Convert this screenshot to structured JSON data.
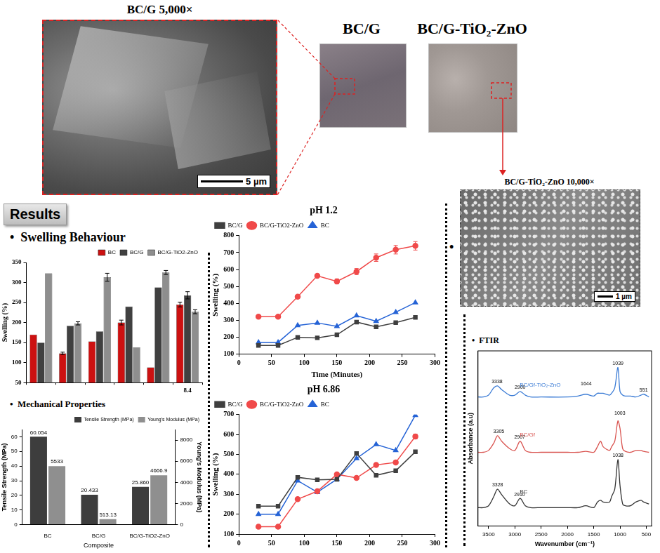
{
  "panels": {
    "sem_bcg": {
      "title": "BC/G 5,000×",
      "scale_bar": "5 µm"
    },
    "photo_bcg": {
      "title": "BC/G"
    },
    "photo_tio2": {
      "title": "BC/G-TiO₂-ZnO"
    },
    "sem_tio2": {
      "title": "BC/G-TiO₂-ZnO 10,000×",
      "scale_bar": "1 µm"
    }
  },
  "headings": {
    "results": "Results",
    "swelling": "Swelling Behaviour",
    "mechanical": "Mechanical Properties",
    "ftir": "FTIR",
    "bullet": "•"
  },
  "chart_data": [
    {
      "type": "bar",
      "categories": [
        null,
        null,
        null,
        null,
        null,
        "8.4"
      ],
      "series": [
        {
          "name": "BC",
          "color": "#cc1111",
          "values": [
            170,
            123,
            153,
            200,
            88,
            245
          ],
          "errors": [
            0,
            3,
            0,
            6,
            0,
            6
          ]
        },
        {
          "name": "BC/G",
          "color": "#404040",
          "values": [
            150,
            192,
            178,
            240,
            288,
            268
          ],
          "errors": [
            0,
            0,
            0,
            0,
            0,
            9
          ]
        },
        {
          "name": "BC/G-TiO2-ZnO",
          "color": "#8e8e8e",
          "values": [
            323,
            198,
            313,
            138,
            325,
            227
          ],
          "errors": [
            0,
            4,
            10,
            0,
            5,
            5
          ]
        }
      ],
      "ylabel": "Swelling (%)",
      "ylim": [
        50,
        350
      ],
      "yticks": [
        50,
        100,
        150,
        200,
        250,
        300,
        350
      ],
      "legend": "upper right",
      "grid": false
    },
    {
      "type": "bar",
      "categories": [
        "BC",
        "BC/G",
        "BC/G-TiO2-ZnO"
      ],
      "series": [
        {
          "name": "Tensile Strength (MPa)",
          "color": "#3d3d3d",
          "values": [
            60.054,
            20.433,
            25.86
          ],
          "value_labels": [
            "60.054",
            "20.433",
            "25.860"
          ]
        },
        {
          "name": "Young's Modulus (MPa)",
          "color": "#8f8f8f",
          "axis": "y2",
          "values": [
            5533,
            513.13,
            4666.9
          ],
          "value_labels": [
            "5533",
            "513.13",
            "4666.9"
          ]
        }
      ],
      "xlabel": "Composite",
      "ylabel": "Tensile Strength (MPa)",
      "y2label": "Young's Modulus (MPa)",
      "ylim": [
        0,
        65
      ],
      "yticks": [
        0,
        10,
        20,
        30,
        40,
        50,
        60
      ],
      "y2lim": [
        0,
        9000
      ],
      "y2ticks": [
        0,
        2000,
        4000,
        6000,
        8000
      ],
      "data_labels": true,
      "legend": "upper right",
      "grid": false
    },
    {
      "type": "line",
      "title": "pH 1.2",
      "x": [
        30,
        60,
        90,
        120,
        150,
        180,
        210,
        240,
        270
      ],
      "series": [
        {
          "name": "BC/G",
          "color": "#3f3f3f",
          "marker": "square",
          "values": [
            152,
            152,
            200,
            197,
            215,
            290,
            262,
            287,
            318
          ]
        },
        {
          "name": "BC/G-TiO2-ZnO",
          "color": "#f04a4a",
          "marker": "circle",
          "values": [
            322,
            322,
            440,
            563,
            530,
            588,
            670,
            717,
            740
          ],
          "errors": [
            0,
            0,
            0,
            10,
            15,
            18,
            22,
            25,
            25
          ]
        },
        {
          "name": "BC",
          "color": "#2563d6",
          "marker": "triangle",
          "values": [
            170,
            170,
            270,
            285,
            265,
            328,
            295,
            348,
            405
          ]
        }
      ],
      "xlabel": "Time (Minutes)",
      "ylabel": "Swelling (%)",
      "xlim": [
        0,
        300
      ],
      "xticks": [
        0,
        50,
        100,
        150,
        200,
        250,
        300
      ],
      "ylim": [
        100,
        800
      ],
      "yticks": [
        100,
        200,
        300,
        400,
        500,
        600,
        700,
        800
      ],
      "legend": "upper left",
      "grid": false
    },
    {
      "type": "line",
      "title": "pH 6.86",
      "x": [
        30,
        60,
        90,
        120,
        150,
        180,
        210,
        240,
        270
      ],
      "series": [
        {
          "name": "BC/G",
          "color": "#3f3f3f",
          "marker": "square",
          "values": [
            240,
            240,
            385,
            372,
            375,
            505,
            395,
            418,
            513
          ]
        },
        {
          "name": "BC/G-TiO2-ZnO",
          "color": "#f04a4a",
          "marker": "circle",
          "values": [
            137,
            137,
            275,
            315,
            400,
            382,
            447,
            460,
            590
          ],
          "errors": [
            0,
            0,
            0,
            0,
            0,
            0,
            0,
            0,
            12
          ]
        },
        {
          "name": "BC",
          "color": "#2563d6",
          "marker": "triangle",
          "values": [
            200,
            200,
            368,
            310,
            375,
            480,
            550,
            520,
            697
          ]
        }
      ],
      "ylabel": "Swelling (%)",
      "xlim": [
        0,
        300
      ],
      "xticks": [
        0,
        50,
        100,
        150,
        200,
        250,
        300
      ],
      "ylim": [
        100,
        700
      ],
      "yticks": [
        100,
        200,
        300,
        400,
        500,
        600,
        700
      ],
      "legend": "upper left",
      "grid": false
    },
    {
      "type": "line",
      "x": [
        3700,
        3600,
        3500,
        3400,
        3330,
        3250,
        3100,
        3000,
        2900,
        2800,
        2700,
        2500,
        2000,
        1800,
        1650,
        1500,
        1430,
        1370,
        1320,
        1200,
        1160,
        1100,
        1040,
        1000,
        950,
        900,
        800,
        700,
        600,
        550,
        450
      ],
      "series": [
        {
          "name": "BC/Gf-TiO₂-ZnO",
          "color": "#3a7bd5",
          "marker": "none",
          "values": [
            7.0,
            7.0,
            7.1,
            7.5,
            7.6,
            7.4,
            7.1,
            7.1,
            7.3,
            7.1,
            7.0,
            7.0,
            7.0,
            7.05,
            7.15,
            7.05,
            7.2,
            7.2,
            7.2,
            7.1,
            7.2,
            7.5,
            8.6,
            7.3,
            7.1,
            7.05,
            7.05,
            7.0,
            7.1,
            7.15,
            7.0
          ]
        },
        {
          "name": "BC/Gf",
          "color": "#d9534f",
          "marker": "none",
          "values": [
            4.0,
            4.0,
            4.1,
            4.5,
            4.9,
            4.6,
            4.2,
            4.1,
            4.6,
            4.1,
            4.0,
            4.0,
            4.0,
            4.0,
            4.05,
            4.0,
            4.3,
            4.6,
            4.3,
            4.1,
            4.3,
            4.6,
            5.7,
            5.3,
            4.2,
            4.05,
            4.0,
            4.1,
            4.1,
            4.05,
            4.0
          ]
        },
        {
          "name": "BC",
          "color": "#333333",
          "marker": "none",
          "values": [
            1.0,
            1.0,
            1.1,
            1.6,
            2.0,
            1.7,
            1.2,
            1.1,
            1.5,
            1.1,
            1.0,
            1.0,
            1.0,
            1.0,
            1.1,
            1.0,
            1.3,
            1.4,
            1.3,
            1.3,
            1.6,
            2.0,
            3.6,
            2.2,
            1.2,
            1.1,
            1.1,
            1.3,
            1.4,
            1.3,
            1.2
          ]
        }
      ],
      "annotations": [
        {
          "text": "3338",
          "x": 3338,
          "y": 7.6
        },
        {
          "text": "2900",
          "x": 2900,
          "y": 7.3
        },
        {
          "text": "1644",
          "x": 1644,
          "y": 7.5
        },
        {
          "text": "1039",
          "x": 1039,
          "y": 8.6
        },
        {
          "text": "551",
          "x": 551,
          "y": 7.15
        },
        {
          "text": "3305",
          "x": 3305,
          "y": 4.9
        },
        {
          "text": "2907",
          "x": 2907,
          "y": 4.6
        },
        {
          "text": "1003",
          "x": 1003,
          "y": 5.9
        },
        {
          "text": "3328",
          "x": 3328,
          "y": 2.0
        },
        {
          "text": "2910",
          "x": 2910,
          "y": 1.5
        },
        {
          "text": "1038",
          "x": 1038,
          "y": 3.6
        }
      ],
      "xlabel": "Wavenumber (cm⁻¹)",
      "ylabel": "Absorbance (a.u)",
      "xlim": [
        3700,
        400
      ],
      "xticks": [
        3500,
        3000,
        2500,
        2000,
        1500,
        1000,
        500
      ],
      "ylim": [
        0,
        9.5
      ],
      "yticks": [],
      "tick_labels": "x",
      "grid": false
    }
  ]
}
